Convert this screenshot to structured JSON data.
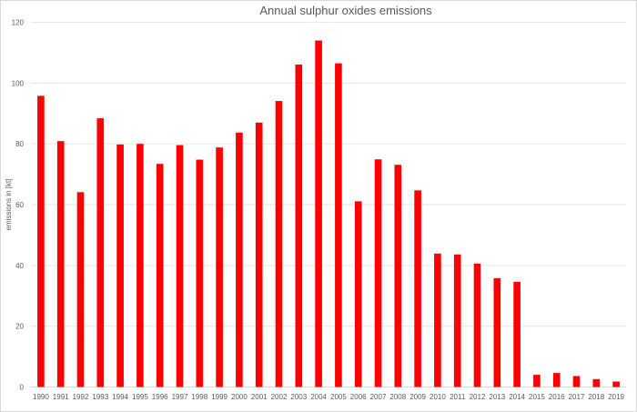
{
  "chart_data": {
    "type": "bar",
    "title": "Annual sulphur oxides emissions",
    "xlabel": "",
    "ylabel": "emissions in [kt]",
    "ylim": [
      0,
      120
    ],
    "yticks": [
      0,
      20,
      40,
      60,
      80,
      100,
      120
    ],
    "grid": true,
    "legend": "none",
    "bar_color": "#ff0000",
    "categories": [
      "1990",
      "1991",
      "1992",
      "1993",
      "1994",
      "1995",
      "1996",
      "1997",
      "1998",
      "1999",
      "2000",
      "2001",
      "2002",
      "2003",
      "2004",
      "2005",
      "2006",
      "2007",
      "2008",
      "2009",
      "2010",
      "2011",
      "2012",
      "2013",
      "2014",
      "2015",
      "2016",
      "2017",
      "2018",
      "2019"
    ],
    "values": [
      95.8,
      80.9,
      64.1,
      88.4,
      79.8,
      80.0,
      73.4,
      79.6,
      74.8,
      78.8,
      83.7,
      87.0,
      94.1,
      106.1,
      114.0,
      106.5,
      61.1,
      74.9,
      73.1,
      64.7,
      43.9,
      43.6,
      40.6,
      35.8,
      34.6,
      4.0,
      4.6,
      3.6,
      2.6,
      1.8
    ]
  }
}
